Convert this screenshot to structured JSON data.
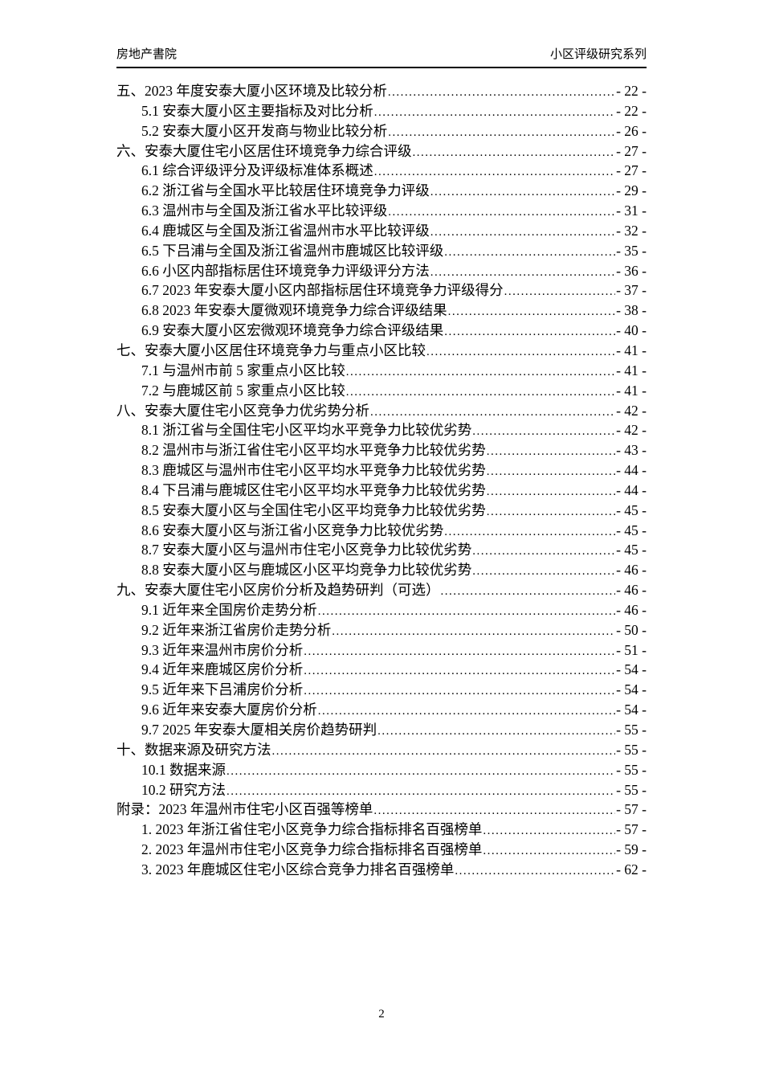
{
  "header": {
    "left": "房地产書院",
    "right": "小区评级研究系列"
  },
  "footer": {
    "page_number": "2"
  },
  "toc": {
    "entries": [
      {
        "level": 1,
        "label": "五、2023 年度安泰大厦小区环境及比较分析",
        "page": "- 22 -"
      },
      {
        "level": 2,
        "label": "5.1 安泰大厦小区主要指标及对比分析",
        "page": "- 22 -"
      },
      {
        "level": 2,
        "label": "5.2 安泰大厦小区开发商与物业比较分析",
        "page": "- 26 -"
      },
      {
        "level": 1,
        "label": "六、安泰大厦住宅小区居住环境竞争力综合评级",
        "page": "- 27 -"
      },
      {
        "level": 2,
        "label": "6.1 综合评级评分及评级标准体系概述",
        "page": "- 27 -"
      },
      {
        "level": 2,
        "label": "6.2 浙江省与全国水平比较居住环境竞争力评级",
        "page": "- 29 -"
      },
      {
        "level": 2,
        "label": "6.3 温州市与全国及浙江省水平比较评级",
        "page": "- 31 -"
      },
      {
        "level": 2,
        "label": "6.4 鹿城区与全国及浙江省温州市水平比较评级",
        "page": "- 32 -"
      },
      {
        "level": 2,
        "label": "6.5 下吕浦与全国及浙江省温州市鹿城区比较评级",
        "page": "- 35 -"
      },
      {
        "level": 2,
        "label": "6.6 小区内部指标居住环境竞争力评级评分方法",
        "page": "- 36 -"
      },
      {
        "level": 2,
        "label": "6.7 2023 年安泰大厦小区内部指标居住环境竞争力评级得分",
        "page": "- 37 -"
      },
      {
        "level": 2,
        "label": "6.8 2023 年安泰大厦微观环境竞争力综合评级结果",
        "page": "- 38 -"
      },
      {
        "level": 2,
        "label": "6.9 安泰大厦小区宏微观环境竞争力综合评级结果",
        "page": "- 40 -"
      },
      {
        "level": 1,
        "label": "七、安泰大厦小区居住环境竞争力与重点小区比较",
        "page": "- 41 -"
      },
      {
        "level": 2,
        "label": "7.1 与温州市前 5 家重点小区比较",
        "page": "- 41 -"
      },
      {
        "level": 2,
        "label": "7.2 与鹿城区前 5 家重点小区比较",
        "page": "- 41 -"
      },
      {
        "level": 1,
        "label": "八、安泰大厦住宅小区竞争力优劣势分析",
        "page": "- 42 -"
      },
      {
        "level": 2,
        "label": "8.1 浙江省与全国住宅小区平均水平竞争力比较优劣势",
        "page": "- 42 -"
      },
      {
        "level": 2,
        "label": "8.2 温州市与浙江省住宅小区平均水平竞争力比较优劣势",
        "page": "- 43 -"
      },
      {
        "level": 2,
        "label": "8.3 鹿城区与温州市住宅小区平均水平竞争力比较优劣势",
        "page": "- 44 -"
      },
      {
        "level": 2,
        "label": "8.4 下吕浦与鹿城区住宅小区平均水平竞争力比较优劣势",
        "page": "- 44 -"
      },
      {
        "level": 2,
        "label": "8.5 安泰大厦小区与全国住宅小区平均竞争力比较优劣势",
        "page": "- 45 -"
      },
      {
        "level": 2,
        "label": "8.6 安泰大厦小区与浙江省小区竞争力比较优劣势",
        "page": "- 45 -"
      },
      {
        "level": 2,
        "label": "8.7 安泰大厦小区与温州市住宅小区竞争力比较优劣势",
        "page": "- 45 -"
      },
      {
        "level": 2,
        "label": "8.8 安泰大厦小区与鹿城区小区平均竞争力比较优劣势",
        "page": "- 46 -"
      },
      {
        "level": 1,
        "label": "九、安泰大厦住宅小区房价分析及趋势研判（可选）",
        "page": "- 46 -"
      },
      {
        "level": 2,
        "label": "9.1 近年来全国房价走势分析",
        "page": "- 46 -"
      },
      {
        "level": 2,
        "label": "9.2 近年来浙江省房价走势分析",
        "page": "- 50 -"
      },
      {
        "level": 2,
        "label": "9.3 近年来温州市房价分析",
        "page": "- 51 -"
      },
      {
        "level": 2,
        "label": "9.4 近年来鹿城区房价分析",
        "page": "- 54 -"
      },
      {
        "level": 2,
        "label": "9.5 近年来下吕浦房价分析",
        "page": "- 54 -"
      },
      {
        "level": 2,
        "label": "9.6 近年来安泰大厦房价分析",
        "page": "- 54 -"
      },
      {
        "level": 2,
        "label": "9.7 2025 年安泰大厦相关房价趋势研判",
        "page": "- 55 -"
      },
      {
        "level": 1,
        "label": "十、数据来源及研究方法",
        "page": "- 55 -"
      },
      {
        "level": 2,
        "label": "10.1 数据来源",
        "page": "- 55 -"
      },
      {
        "level": 2,
        "label": "10.2 研究方法",
        "page": "- 55 -"
      },
      {
        "level": 1,
        "label": "附录：2023 年温州市住宅小区百强等榜单",
        "page": "- 57 -"
      },
      {
        "level": 2,
        "label": "1. 2023 年浙江省住宅小区竞争力综合指标排名百强榜单",
        "page": "- 57 -"
      },
      {
        "level": 2,
        "label": "2. 2023 年温州市住宅小区竞争力综合指标排名百强榜单",
        "page": "- 59 -"
      },
      {
        "level": 2,
        "label": "3. 2023 年鹿城区住宅小区综合竞争力排名百强榜单",
        "page": "- 62 -"
      }
    ]
  }
}
